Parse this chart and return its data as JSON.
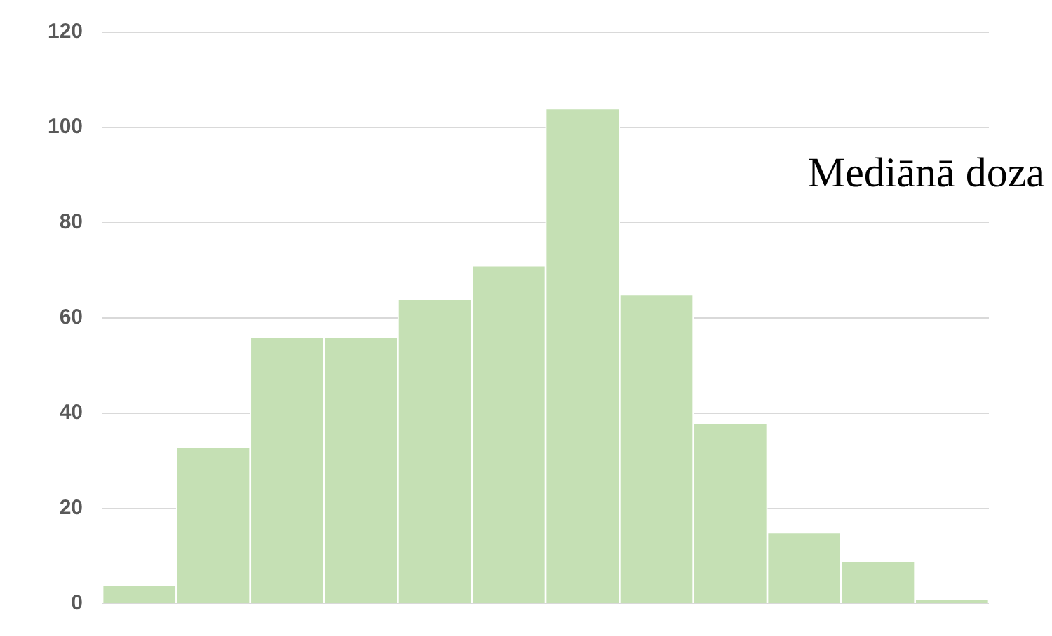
{
  "chart_data": {
    "type": "bar",
    "categories": [
      null,
      null,
      null,
      null,
      null,
      null,
      null,
      null,
      null,
      null,
      null,
      null
    ],
    "values": [
      4,
      33,
      56,
      56,
      64,
      71,
      104,
      65,
      38,
      15,
      9,
      1
    ],
    "color": "#c5e0b4",
    "ylim": [
      0,
      120
    ],
    "yticks": [
      0,
      20,
      40,
      60,
      80,
      100,
      120
    ],
    "grid": "y",
    "annotations": [
      "Mediānā doza"
    ]
  }
}
